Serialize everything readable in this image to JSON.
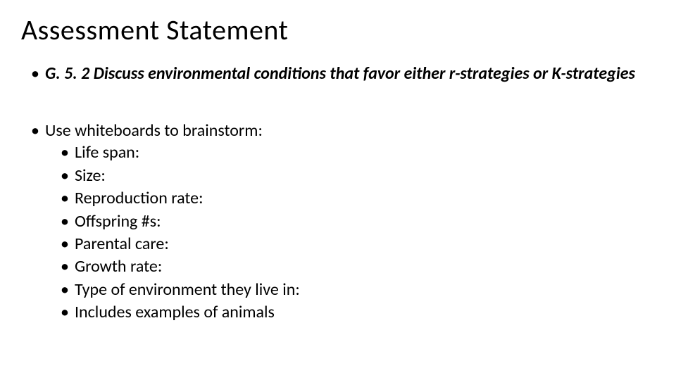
{
  "slide": {
    "title": "Assessment Statement",
    "main_bullet_1": "G. 5. 2  Discuss environmental conditions that favor either r-strategies or K-strategies",
    "main_bullet_2": "Use whiteboards to brainstorm:",
    "sub_bullets": [
      "Life span:",
      "Size:",
      "Reproduction rate:",
      "Offspring #s:",
      "Parental care:",
      "Growth rate:",
      "Type of environment they live in:",
      "Includes examples of animals"
    ]
  },
  "style": {
    "background_color": "#ffffff",
    "text_color": "#000000",
    "title_fontsize": 40,
    "body_fontsize": 24,
    "font_family": "Calibri",
    "bullet_char": "•"
  }
}
